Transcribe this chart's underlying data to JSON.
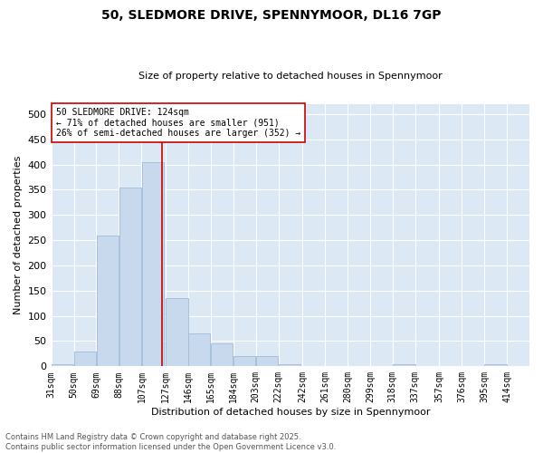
{
  "title_line1": "50, SLEDMORE DRIVE, SPENNYMOOR, DL16 7GP",
  "title_line2": "Size of property relative to detached houses in Spennymoor",
  "xlabel": "Distribution of detached houses by size in Spennymoor",
  "ylabel": "Number of detached properties",
  "bar_color": "#c8d9ee",
  "bar_edge_color": "#a0bcd8",
  "background_color": "#dce9f5",
  "fig_background": "#ffffff",
  "grid_color": "#ffffff",
  "bin_left_edges": [
    31,
    50,
    69,
    88,
    107,
    127,
    146,
    165,
    184,
    203,
    222,
    242,
    261,
    280,
    299,
    318,
    337,
    357,
    376,
    395
  ],
  "bin_labels": [
    "31sqm",
    "50sqm",
    "69sqm",
    "88sqm",
    "107sqm",
    "127sqm",
    "146sqm",
    "165sqm",
    "184sqm",
    "203sqm",
    "222sqm",
    "242sqm",
    "261sqm",
    "280sqm",
    "299sqm",
    "318sqm",
    "337sqm",
    "357sqm",
    "376sqm",
    "395sqm",
    "414sqm"
  ],
  "bar_heights": [
    5,
    30,
    260,
    355,
    405,
    135,
    65,
    45,
    20,
    20,
    5,
    1,
    1,
    0,
    0,
    5,
    0,
    0,
    0,
    5
  ],
  "property_line_x": 124,
  "property_line_color": "#cc0000",
  "annotation_text": "50 SLEDMORE DRIVE: 124sqm\n← 71% of detached houses are smaller (951)\n26% of semi-detached houses are larger (352) →",
  "annotation_box_color": "#ffffff",
  "annotation_box_edge": "#cc0000",
  "ylim": [
    0,
    520
  ],
  "yticks": [
    0,
    50,
    100,
    150,
    200,
    250,
    300,
    350,
    400,
    450,
    500
  ],
  "xlim_left": 31,
  "xlim_right": 414,
  "footer_line1": "Contains HM Land Registry data © Crown copyright and database right 2025.",
  "footer_line2": "Contains public sector information licensed under the Open Government Licence v3.0.",
  "title_fontsize": 10,
  "subtitle_fontsize": 8,
  "ylabel_fontsize": 8,
  "xlabel_fontsize": 8,
  "tick_fontsize": 7,
  "footer_fontsize": 6,
  "annotation_fontsize": 7
}
